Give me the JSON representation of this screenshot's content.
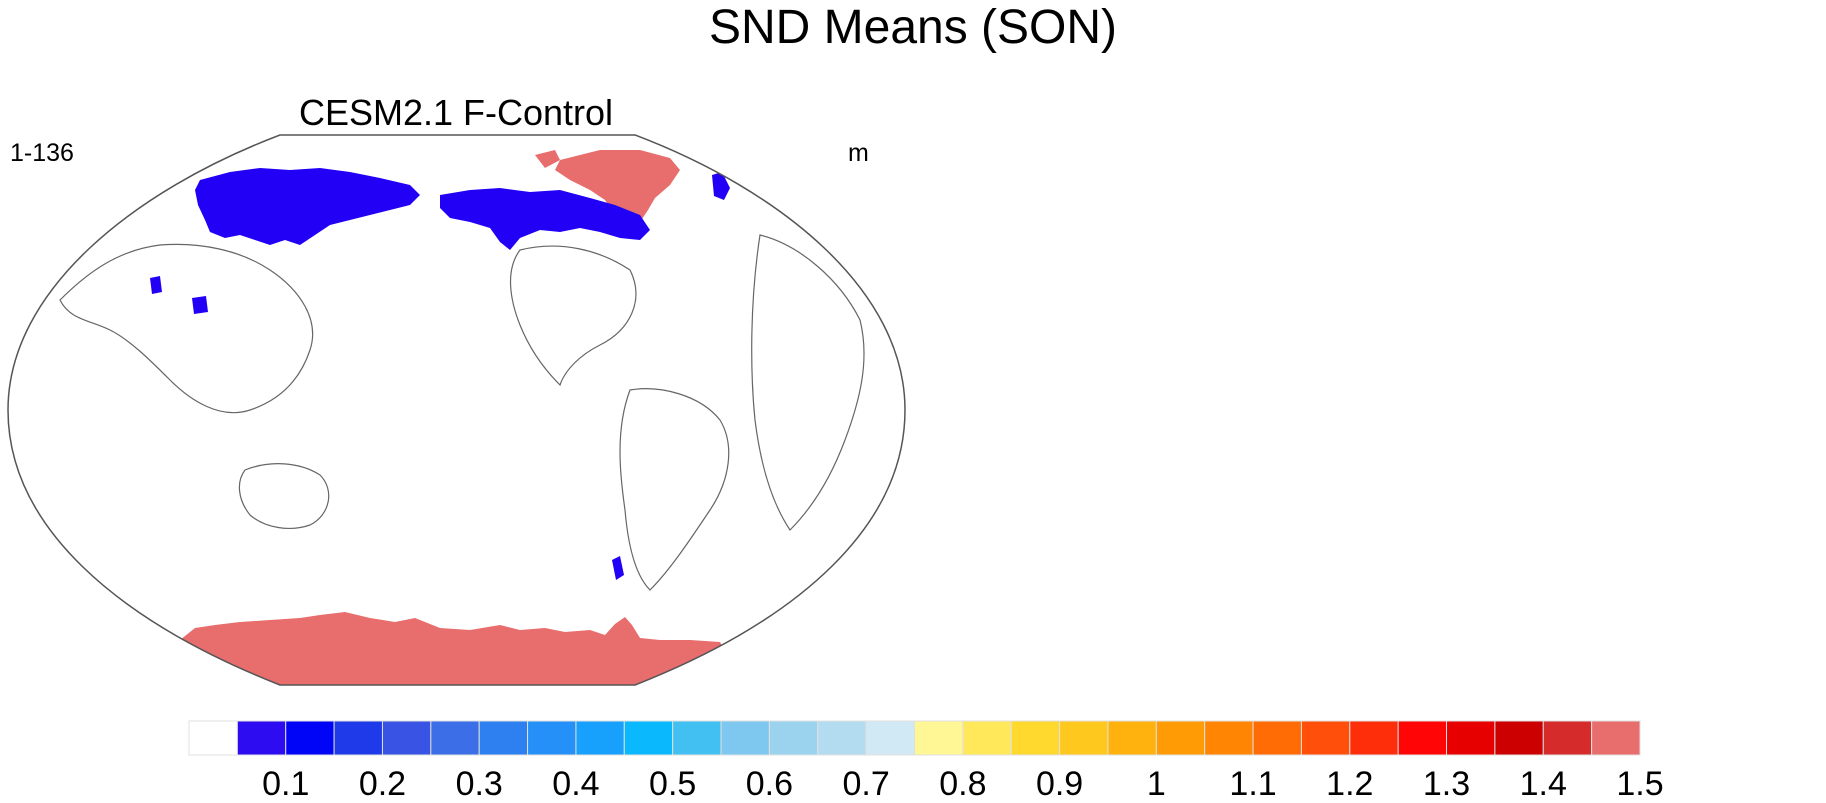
{
  "figure": {
    "title": "SND Means (SON)",
    "panel_title": "CESM2.1 F-Control",
    "left_string": "1-136",
    "right_string": "m"
  },
  "colorbar": {
    "labels": [
      "0.1",
      "0.2",
      "0.3",
      "0.4",
      "0.5",
      "0.6",
      "0.7",
      "0.8",
      "0.9",
      "1",
      "1.1",
      "1.2",
      "1.3",
      "1.4",
      "1.5"
    ],
    "colors": [
      "#ffffff",
      "#2e0cf2",
      "#0005f7",
      "#1f3ae8",
      "#3954e4",
      "#3c6ee8",
      "#2e80f0",
      "#2590f8",
      "#17a1fc",
      "#0ab8fd",
      "#42c0f2",
      "#7ec8ef",
      "#9bd3ef",
      "#b3dcf1",
      "#d1e9f5",
      "#fff695",
      "#ffe95a",
      "#ffd92e",
      "#ffc81f",
      "#ffb20d",
      "#ff9c05",
      "#ff8503",
      "#ff6b05",
      "#ff4f0a",
      "#ff2e0a",
      "#ff0505",
      "#e60000",
      "#cc0000",
      "#d62b2b",
      "#e86d6d"
    ]
  },
  "map": {
    "colors": {
      "low": "#2200f6",
      "low2": "#1330f0",
      "high": "#e86d6d",
      "coast": "#666666",
      "frame": "#555555"
    }
  }
}
